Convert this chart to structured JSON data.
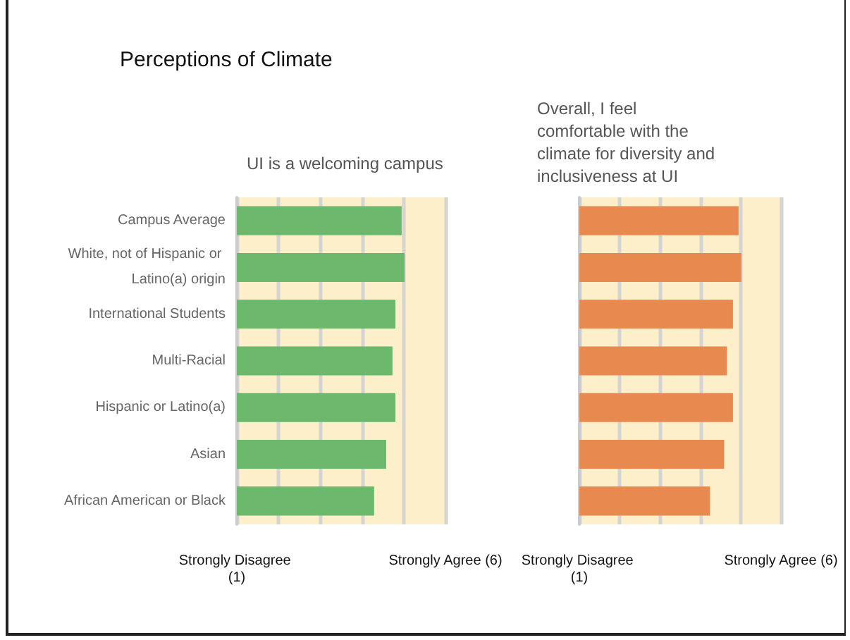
{
  "chart_data": [
    {
      "type": "other",
      "title": "Perceptions of Climate"
    },
    {
      "type": "bar",
      "orientation": "horizontal",
      "title": "UI is a welcoming campus",
      "categories": [
        "Campus Average",
        "White, not of Hispanic or Latino(a) origin",
        "International Students",
        "Multi-Racial",
        "Hispanic or Latino(a)",
        "Asian",
        "African American or Black"
      ],
      "values": [
        4.95,
        5.02,
        4.8,
        4.73,
        4.8,
        4.58,
        4.29
      ],
      "color": "#6cb86c",
      "xlim": [
        1,
        6
      ],
      "xticks": [
        {
          "value": 1,
          "label": "Strongly Disagree (1)"
        },
        {
          "value": 2,
          "label": null
        },
        {
          "value": 3,
          "label": null
        },
        {
          "value": 4,
          "label": null
        },
        {
          "value": 5,
          "label": null
        },
        {
          "value": 6,
          "label": "Strongly Agree (6)"
        }
      ],
      "grid": "x"
    },
    {
      "type": "bar",
      "orientation": "horizontal",
      "title": "Overall, I feel comfortable with the climate for diversity and inclusiveness at UI",
      "categories": [
        null,
        null,
        null,
        null,
        null,
        null,
        null
      ],
      "values": [
        4.95,
        5.02,
        4.81,
        4.66,
        4.81,
        4.59,
        4.24
      ],
      "color": "#e8894f",
      "xlim": [
        1,
        6
      ],
      "xticks": [
        {
          "value": 1,
          "label": "Strongly Disagree (1)"
        },
        {
          "value": 2,
          "label": null
        },
        {
          "value": 3,
          "label": null
        },
        {
          "value": 4,
          "label": null
        },
        {
          "value": 5,
          "label": null
        },
        {
          "value": 6,
          "label": "Strongly Agree (6)"
        }
      ],
      "grid": "x",
      "tick_labels": "x"
    }
  ]
}
